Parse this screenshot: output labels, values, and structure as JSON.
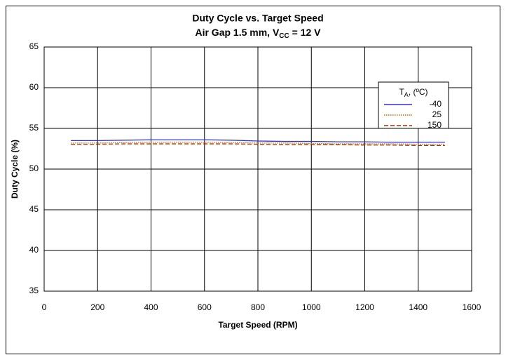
{
  "chart_data": {
    "type": "line",
    "title": "Duty Cycle vs. Target Speed",
    "subtitle": [
      "Air Gap 1.5 mm, V",
      "CC",
      " = 12 V"
    ],
    "x_label": "Target Speed (RPM)",
    "y_label": "Duty Cycle (%)",
    "x": [
      100,
      200,
      300,
      400,
      500,
      600,
      700,
      800,
      900,
      1000,
      1100,
      1200,
      1300,
      1400,
      1500
    ],
    "legend_title": [
      "T",
      "A",
      ", (ºC)"
    ],
    "legend": "upper right",
    "grid": true,
    "series": [
      {
        "name": "-40",
        "color": "#3333cc",
        "style": "solid",
        "values": [
          53.5,
          53.5,
          53.55,
          53.6,
          53.6,
          53.6,
          53.55,
          53.45,
          53.4,
          53.4,
          53.35,
          53.35,
          53.3,
          53.3,
          53.3
        ]
      },
      {
        "name": "25",
        "color": "#cc6600",
        "style": "dotted",
        "values": [
          53.2,
          53.2,
          53.25,
          53.3,
          53.3,
          53.3,
          53.25,
          53.2,
          53.2,
          53.15,
          53.1,
          53.1,
          53.1,
          53.05,
          53.05
        ]
      },
      {
        "name": "150",
        "color": "#993300",
        "style": "dashed",
        "values": [
          53.05,
          53.05,
          53.1,
          53.1,
          53.1,
          53.1,
          53.1,
          53.05,
          53.0,
          53.0,
          53.0,
          52.95,
          52.95,
          52.9,
          52.9
        ]
      }
    ],
    "xlim": [
      0,
      1600
    ],
    "xticks": [
      0,
      200,
      400,
      600,
      800,
      1000,
      1200,
      1400,
      1600
    ],
    "ylim": [
      35,
      65
    ],
    "yticks": [
      35,
      40,
      45,
      50,
      55,
      60,
      65
    ]
  }
}
